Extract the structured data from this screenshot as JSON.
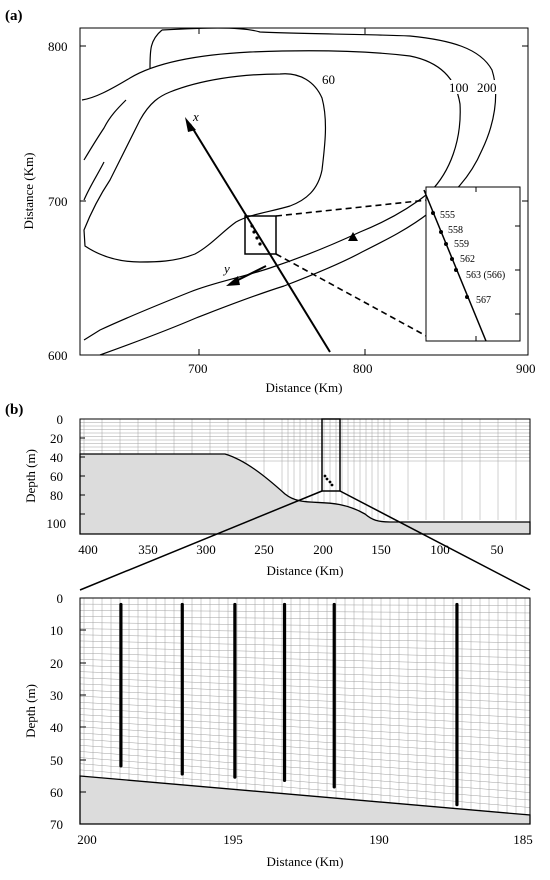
{
  "panel_a": {
    "label": "(a)",
    "xlabel": "Distance (Km)",
    "ylabel": "Distance (Km)",
    "xticks": [
      "700",
      "800",
      "900"
    ],
    "yticks": [
      "600",
      "700",
      "800"
    ],
    "contours": [
      "60",
      "100",
      "200"
    ],
    "axis_x_label": "x",
    "axis_y_label": "y",
    "stations": [
      "555",
      "558",
      "559",
      "562",
      "563 (566)",
      "567"
    ]
  },
  "panel_b": {
    "label": "(b)",
    "xlabel": "Distance (Km)",
    "ylabel": "Depth (m)",
    "xticks": [
      "400",
      "350",
      "300",
      "250",
      "200",
      "150",
      "100",
      "50"
    ],
    "yticks": [
      "0",
      "20",
      "40",
      "60",
      "80",
      "100"
    ]
  },
  "panel_c": {
    "xlabel": "Distance (Km)",
    "ylabel": "Depth (m)",
    "xticks": [
      "200",
      "195",
      "190",
      "185"
    ],
    "yticks": [
      "0",
      "10",
      "20",
      "30",
      "40",
      "50",
      "60",
      "70"
    ],
    "profile_x_km": [
      198.9,
      196.8,
      195.0,
      193.3,
      191.6,
      187.4
    ],
    "profile_bottom_m": [
      52,
      54.5,
      55.5,
      56.5,
      58.5,
      64
    ]
  },
  "colors": {
    "land": "#dcdcdc",
    "grid": "#a0a0a0",
    "line": "#000000"
  }
}
